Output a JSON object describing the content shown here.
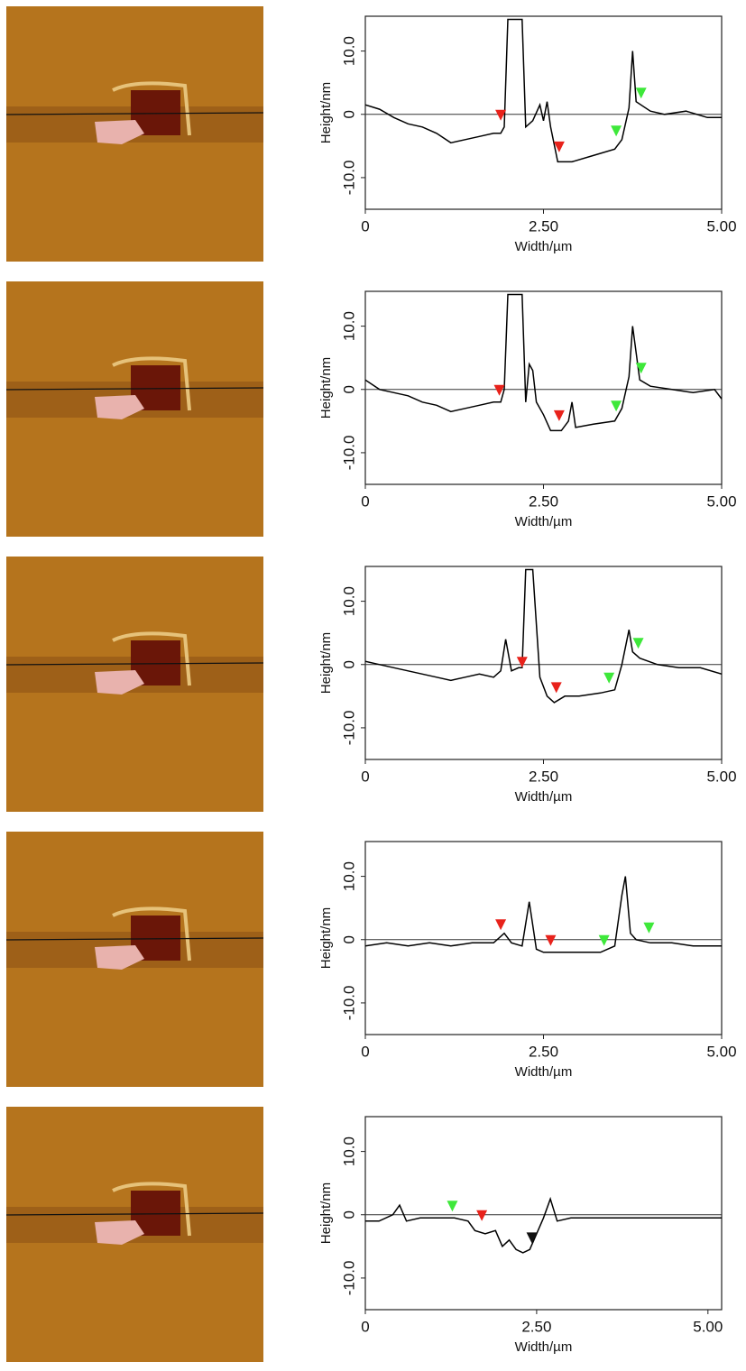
{
  "chart_data": [
    {
      "type": "line",
      "x_label": "Width/µm",
      "y_label": "Height/nm",
      "color": "#000000",
      "x": [
        0,
        0.2,
        0.4,
        0.6,
        0.8,
        1.0,
        1.2,
        1.4,
        1.6,
        1.8,
        1.9,
        1.95,
        2.0,
        2.2,
        2.25,
        2.35,
        2.45,
        2.5,
        2.55,
        2.6,
        2.7,
        2.9,
        3.2,
        3.5,
        3.6,
        3.7,
        3.75,
        3.8,
        4.0,
        4.2,
        4.5,
        4.8,
        5.0
      ],
      "values": [
        1.5,
        0.8,
        -0.5,
        -1.5,
        -2,
        -3,
        -4.5,
        -4,
        -3.5,
        -3,
        -3,
        -2,
        15,
        15,
        -2,
        -1,
        1.5,
        -1,
        2,
        -2,
        -7.5,
        -7.5,
        -6.5,
        -5.5,
        -4,
        1,
        10,
        2,
        0.5,
        0,
        0.5,
        -0.5,
        -0.5
      ],
      "markers": {
        "x": [
          1.9,
          2.72,
          3.52,
          3.87
        ],
        "y": [
          -1,
          -6,
          -3.5,
          2.5
        ],
        "colors": [
          "#e8221b",
          "#e8221b",
          "#3ee83a",
          "#3ee83a"
        ]
      },
      "xlim": [
        0,
        5
      ],
      "ylim": [
        -15,
        15.5
      ],
      "xticks": [
        0,
        {
          "value": 2.5,
          "label": "2.50"
        },
        {
          "value": 5,
          "label": "5.00"
        }
      ],
      "yticks": [
        {
          "value": -10,
          "label": "-10.0"
        },
        0,
        {
          "value": 10,
          "label": "10.0"
        }
      ]
    },
    {
      "type": "line",
      "x_label": "Width/µm",
      "y_label": "Height/nm",
      "color": "#000000",
      "x": [
        0,
        0.2,
        0.4,
        0.6,
        0.8,
        1.0,
        1.2,
        1.4,
        1.6,
        1.8,
        1.9,
        1.95,
        2.0,
        2.2,
        2.25,
        2.3,
        2.35,
        2.4,
        2.5,
        2.6,
        2.75,
        2.85,
        2.9,
        2.95,
        3.2,
        3.5,
        3.6,
        3.7,
        3.75,
        3.85,
        4.0,
        4.3,
        4.6,
        4.9,
        5.0
      ],
      "values": [
        1.5,
        0,
        -0.5,
        -1,
        -2,
        -2.5,
        -3.5,
        -3,
        -2.5,
        -2,
        -2,
        0,
        15,
        15,
        -2,
        4,
        3,
        -2,
        -4,
        -6.5,
        -6.5,
        -5,
        -2,
        -6,
        -5.5,
        -5,
        -3,
        2,
        10,
        1.5,
        0.5,
        0,
        -0.5,
        0,
        -1.5
      ],
      "markers": {
        "x": [
          1.88,
          2.72,
          3.52,
          3.87
        ],
        "y": [
          -1,
          -5,
          -3.5,
          2.5
        ],
        "colors": [
          "#e8221b",
          "#e8221b",
          "#3ee83a",
          "#3ee83a"
        ]
      },
      "xlim": [
        0,
        5
      ],
      "ylim": [
        -15,
        15.5
      ],
      "xticks": [
        0,
        {
          "value": 2.5,
          "label": "2.50"
        },
        {
          "value": 5,
          "label": "5.00"
        }
      ],
      "yticks": [
        {
          "value": -10,
          "label": "-10.0"
        },
        0,
        {
          "value": 10,
          "label": "10.0"
        }
      ]
    },
    {
      "type": "line",
      "x_label": "Width/µm",
      "y_label": "Height/nm",
      "color": "#000000",
      "x": [
        0,
        0.2,
        0.4,
        0.6,
        0.8,
        1.0,
        1.2,
        1.4,
        1.6,
        1.8,
        1.9,
        1.97,
        2.05,
        2.15,
        2.2,
        2.25,
        2.35,
        2.45,
        2.55,
        2.65,
        2.8,
        3.0,
        3.3,
        3.5,
        3.6,
        3.7,
        3.75,
        3.85,
        4.1,
        4.4,
        4.7,
        5.0
      ],
      "values": [
        0.5,
        0,
        -0.5,
        -1,
        -1.5,
        -2,
        -2.5,
        -2,
        -1.5,
        -2,
        -1,
        4,
        -1,
        -0.5,
        -0.5,
        15,
        15,
        -2,
        -5,
        -6,
        -5,
        -5,
        -4.5,
        -4,
        0,
        5.5,
        2,
        1,
        0,
        -0.5,
        -0.5,
        -1.5
      ],
      "markers": {
        "x": [
          2.2,
          2.68,
          3.42,
          3.83
        ],
        "y": [
          -0.5,
          -4.5,
          -3,
          2.5
        ],
        "colors": [
          "#e8221b",
          "#e8221b",
          "#3ee83a",
          "#3ee83a"
        ]
      },
      "xlim": [
        0,
        5
      ],
      "ylim": [
        -15,
        15.5
      ],
      "xticks": [
        0,
        {
          "value": 2.5,
          "label": "2.50"
        },
        {
          "value": 5,
          "label": "5.00"
        }
      ],
      "yticks": [
        {
          "value": -10,
          "label": "-10.0"
        },
        0,
        {
          "value": 10,
          "label": "10.0"
        }
      ]
    },
    {
      "type": "line",
      "x_label": "Width/µm",
      "y_label": "Height/nm",
      "color": "#000000",
      "x": [
        0,
        0.3,
        0.6,
        0.9,
        1.2,
        1.5,
        1.8,
        1.95,
        2.05,
        2.2,
        2.3,
        2.4,
        2.5,
        2.7,
        3.0,
        3.3,
        3.5,
        3.6,
        3.65,
        3.72,
        3.8,
        4.0,
        4.3,
        4.6,
        5.0
      ],
      "values": [
        -1,
        -0.5,
        -1,
        -0.5,
        -1,
        -0.5,
        -0.5,
        1,
        -0.5,
        -1,
        6,
        -1.5,
        -2,
        -2,
        -2,
        -2,
        -1,
        7,
        10,
        1,
        0,
        -0.5,
        -0.5,
        -1,
        -1
      ],
      "markers": {
        "x": [
          1.9,
          2.6,
          3.35,
          3.98
        ],
        "y": [
          1.5,
          -1,
          -1,
          1
        ],
        "colors": [
          "#e8221b",
          "#e8221b",
          "#3ee83a",
          "#3ee83a"
        ]
      },
      "xlim": [
        0,
        5
      ],
      "ylim": [
        -15,
        15.5
      ],
      "xticks": [
        0,
        {
          "value": 2.5,
          "label": "2.50"
        },
        {
          "value": 5,
          "label": "5.00"
        }
      ],
      "yticks": [
        {
          "value": -10,
          "label": "-10.0"
        },
        0,
        {
          "value": 10,
          "label": "10.0"
        }
      ]
    },
    {
      "type": "line",
      "x_label": "Width/µm",
      "y_label": "Height/nm",
      "color": "#000000",
      "x": [
        0,
        0.2,
        0.4,
        0.5,
        0.6,
        0.8,
        1.0,
        1.3,
        1.5,
        1.6,
        1.75,
        1.9,
        2.0,
        2.1,
        2.2,
        2.3,
        2.4,
        2.5,
        2.6,
        2.7,
        2.8,
        3.0,
        3.5,
        4.0,
        4.5,
        5.0,
        5.2
      ],
      "values": [
        -1,
        -1,
        0,
        1.5,
        -1,
        -0.5,
        -0.5,
        -0.5,
        -1,
        -2.5,
        -3,
        -2.5,
        -5,
        -4,
        -5.5,
        -6,
        -5.5,
        -3,
        -0.5,
        2.5,
        -1,
        -0.5,
        -0.5,
        -0.5,
        -0.5,
        -0.5,
        -0.5
      ],
      "markers": {
        "x": [
          1.27,
          1.7,
          2.43
        ],
        "y": [
          0.5,
          -1,
          -4.5
        ],
        "colors": [
          "#3ee83a",
          "#e8221b",
          "#111111"
        ]
      },
      "xlim": [
        0,
        5.2
      ],
      "ylim": [
        -15,
        15.5
      ],
      "xticks": [
        0,
        {
          "value": 2.5,
          "label": "2.50"
        },
        {
          "value": 5,
          "label": "5.00"
        }
      ],
      "yticks": [
        {
          "value": -10,
          "label": "-10.0"
        },
        0,
        {
          "value": 10,
          "label": "10.0"
        }
      ]
    }
  ]
}
